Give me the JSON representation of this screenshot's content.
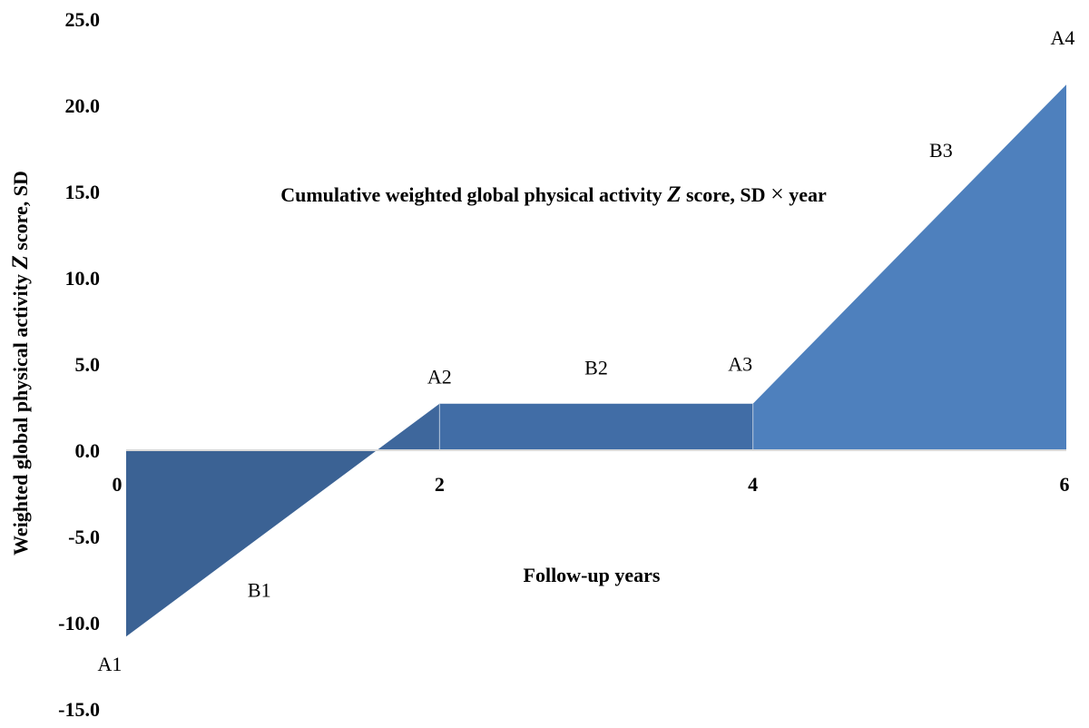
{
  "chart_data": {
    "type": "area",
    "title": "",
    "xlabel": "Follow-up  years",
    "ylabel": "Weighted global physical activity Z score, SD",
    "annotation": {
      "before_z": "Cumulative  weighted  global physical activity ",
      "z": "Z",
      "after_z": " score, SD ",
      "times": "×",
      "unit": " year"
    },
    "xlim": [
      0,
      6
    ],
    "ylim": [
      -15,
      25
    ],
    "x_ticks": [
      0,
      2,
      4,
      6
    ],
    "x_tick_labels": [
      "0",
      "2",
      "4",
      "6"
    ],
    "y_ticks": [
      25,
      20,
      15,
      10,
      5,
      0,
      -5,
      -10,
      -15
    ],
    "y_tick_labels": [
      "25.0",
      "20.0",
      "15.0",
      "10.0",
      "5.0",
      "0.0",
      "-5.0",
      "-10.0",
      "-15.0"
    ],
    "grid": false,
    "fill_colors": {
      "negative": "#3b6294",
      "segment_0_2": "#3e679c",
      "segment_2_4": "#416da6",
      "segment_4_6": "#4e80bd",
      "divider": "#b9c9de"
    },
    "points": [
      {
        "label": "A1",
        "x": 0,
        "y": -10.8
      },
      {
        "label": "A2",
        "x": 2,
        "y": 2.7
      },
      {
        "label": "A3",
        "x": 4,
        "y": 2.7
      },
      {
        "label": "A4",
        "x": 6,
        "y": 21.2
      }
    ],
    "zero_crossing_x": 1.6,
    "region_labels": [
      {
        "label": "B1",
        "x": 0.85,
        "y": -8.5
      },
      {
        "label": "B2",
        "x": 3.0,
        "y": 4.4
      },
      {
        "label": "B3",
        "x": 5.2,
        "y": 17.0
      }
    ]
  }
}
